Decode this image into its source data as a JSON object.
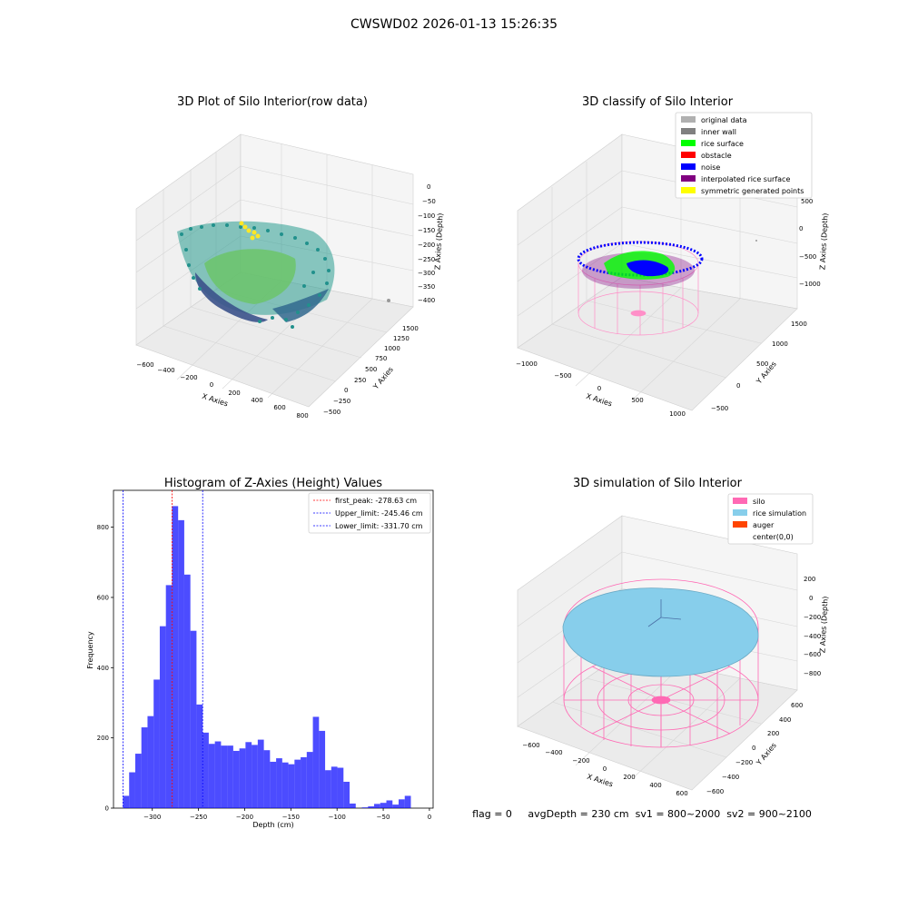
{
  "suptitle": "CWSWD02 2026-01-13 15:26:35",
  "status_line": "flag = 0     avgDepth = 230 cm  sv1 = 800~2000  sv2 = 900~2100",
  "chart_data": [
    {
      "type": "scatter",
      "title": "3D Plot of Silo Interior(row data)",
      "xlabel": "X Axies",
      "ylabel": "Y Axies",
      "zlabel": "Z Axies (Depth)",
      "x_ticks": [
        "−600",
        "−400",
        "−200",
        "0",
        "200",
        "400",
        "600",
        "800"
      ],
      "y_ticks": [
        "−500",
        "−250",
        "0",
        "250",
        "500",
        "750",
        "1000",
        "1250",
        "1500"
      ],
      "z_ticks": [
        "0",
        "−50",
        "−100",
        "−150",
        "−200",
        "−250",
        "−300",
        "−350",
        "−400"
      ],
      "colormap": "viridis"
    },
    {
      "type": "scatter",
      "title": "3D classify of Silo Interior",
      "xlabel": "X Axies",
      "ylabel": "Y Axies",
      "zlabel": "Z Axies (Depth)",
      "x_ticks": [
        "−1000",
        "−500",
        "0",
        "500",
        "1000"
      ],
      "y_ticks": [
        "−500",
        "0",
        "500",
        "1000",
        "1500"
      ],
      "z_ticks": [
        "500",
        "0",
        "−500",
        "−1000"
      ],
      "legend": [
        {
          "label": "original data",
          "color": "#b0b0b0"
        },
        {
          "label": "inner wall",
          "color": "#808080"
        },
        {
          "label": "rice surface",
          "color": "#00ff00"
        },
        {
          "label": "obstacle",
          "color": "#ff0000"
        },
        {
          "label": "noise",
          "color": "#0000ff"
        },
        {
          "label": "interpolated rice surface",
          "color": "#800080"
        },
        {
          "label": "symmetric generated points",
          "color": "#ffff00"
        }
      ],
      "legend_position": "top-right"
    },
    {
      "type": "bar",
      "title": "Histogram of Z-Axies (Height) Values",
      "xlabel": "Depth (cm)",
      "ylabel": "Frequency",
      "xlim": [
        -342,
        4
      ],
      "ylim": [
        0,
        905
      ],
      "x_ticks": [
        -300,
        -250,
        -200,
        -150,
        -100,
        -50,
        0
      ],
      "x_tick_labels": [
        "−300",
        "−250",
        "−200",
        "−150",
        "−100",
        "−50",
        "0"
      ],
      "y_ticks": [
        0,
        200,
        400,
        600,
        800
      ],
      "bin_start": -331.7,
      "bin_width": 6.63,
      "values": [
        35,
        102,
        155,
        230,
        262,
        366,
        518,
        635,
        860,
        820,
        665,
        505,
        295,
        215,
        183,
        190,
        178,
        178,
        163,
        170,
        188,
        180,
        195,
        165,
        132,
        142,
        130,
        125,
        138,
        145,
        160,
        260,
        220,
        108,
        118,
        115,
        75,
        13,
        0,
        2,
        5,
        12,
        15,
        22,
        10,
        25,
        35
      ],
      "color": "#0000ff",
      "legend_position": "top-right",
      "vlines": [
        {
          "label": "first_peak: -278.63 cm",
          "x": -278.63,
          "color": "#ff0000"
        },
        {
          "label": "Upper_limit: -245.46 cm",
          "x": -245.46,
          "color": "#0000ff"
        },
        {
          "label": "Lower_limit: -331.70 cm",
          "x": -331.7,
          "color": "#0000ff"
        }
      ]
    },
    {
      "type": "scatter",
      "title": "3D simulation of Silo Interior",
      "xlabel": "X Axies",
      "ylabel": "Y Axies",
      "zlabel": "Z Axies (Depth)",
      "x_ticks": [
        "−600",
        "−400",
        "−200",
        "0",
        "200",
        "400",
        "600"
      ],
      "y_ticks": [
        "−600",
        "−400",
        "−200",
        "0",
        "200",
        "400",
        "600"
      ],
      "z_ticks": [
        "200",
        "0",
        "−200",
        "−400",
        "−600",
        "−800"
      ],
      "legend": [
        {
          "label": "silo",
          "color": "#ff69b4"
        },
        {
          "label": "rice simulation",
          "color": "#87ceeb"
        },
        {
          "label": "auger",
          "color": "#ff4500"
        },
        {
          "label": "center(0,0)",
          "color": "#ffffff"
        }
      ],
      "legend_position": "top-right"
    }
  ]
}
